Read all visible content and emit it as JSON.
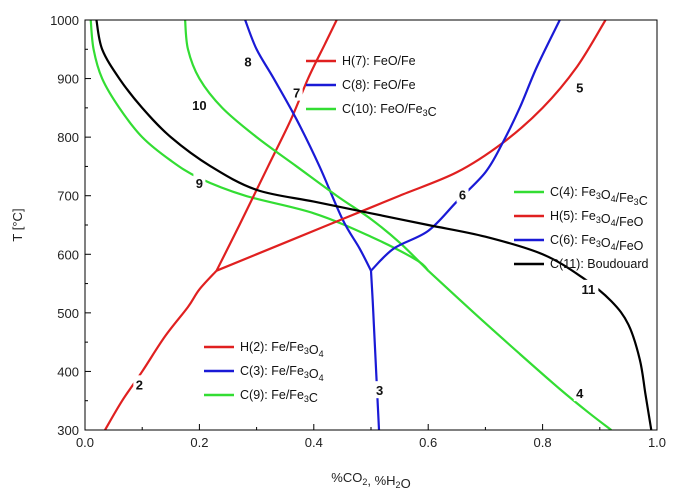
{
  "chart_data": {
    "type": "line",
    "xlabel": {
      "pre": "%CO",
      "sub1": "2",
      "mid": ", %H",
      "sub2": "2",
      "post": "O"
    },
    "ylabel": "T [°C]",
    "xlim": [
      0.0,
      1.0
    ],
    "ylim": [
      300,
      1000
    ],
    "xticks": [
      "0.0",
      "0.2",
      "0.4",
      "0.6",
      "0.8",
      "1.0"
    ],
    "yticks": [
      "300",
      "400",
      "500",
      "600",
      "700",
      "800",
      "900",
      "1000"
    ],
    "grid": false,
    "colors": {
      "red": "#e02020",
      "blue": "#1a1ad6",
      "green": "#33dd33",
      "black": "#000000"
    },
    "series": [
      {
        "name": "H(2): Fe/Fe3O4",
        "label": "2",
        "color": "red",
        "points": [
          [
            0.035,
            300
          ],
          [
            0.065,
            350
          ],
          [
            0.1,
            400
          ],
          [
            0.14,
            460
          ],
          [
            0.18,
            510
          ],
          [
            0.2,
            540
          ],
          [
            0.23,
            572
          ]
        ]
      },
      {
        "name": "C(3): Fe/Fe3O4",
        "label": "3",
        "color": "blue",
        "points": [
          [
            0.5,
            572
          ],
          [
            0.503,
            520
          ],
          [
            0.505,
            480
          ],
          [
            0.508,
            420
          ],
          [
            0.51,
            380
          ],
          [
            0.512,
            340
          ],
          [
            0.514,
            300
          ]
        ]
      },
      {
        "name": "C(9): Fe/Fe3C",
        "label": "9",
        "color": "green",
        "points": [
          [
            0.01,
            1000
          ],
          [
            0.015,
            950
          ],
          [
            0.03,
            900
          ],
          [
            0.06,
            850
          ],
          [
            0.1,
            800
          ],
          [
            0.15,
            760
          ],
          [
            0.2,
            730
          ],
          [
            0.28,
            700
          ],
          [
            0.4,
            670
          ],
          [
            0.5,
            630
          ],
          [
            0.58,
            590
          ],
          [
            0.6,
            572
          ]
        ]
      },
      {
        "name": "H(7): FeO/Fe",
        "label": "7",
        "color": "red",
        "points": [
          [
            0.23,
            572
          ],
          [
            0.27,
            650
          ],
          [
            0.32,
            750
          ],
          [
            0.36,
            830
          ],
          [
            0.39,
            900
          ],
          [
            0.42,
            960
          ],
          [
            0.44,
            1000
          ]
        ]
      },
      {
        "name": "C(8): FeO/Fe",
        "label": "8",
        "color": "blue",
        "points": [
          [
            0.28,
            1000
          ],
          [
            0.3,
            950
          ],
          [
            0.33,
            900
          ],
          [
            0.37,
            830
          ],
          [
            0.41,
            750
          ],
          [
            0.45,
            660
          ],
          [
            0.48,
            610
          ],
          [
            0.5,
            572
          ]
        ]
      },
      {
        "name": "C(10): FeO/Fe3C",
        "label": "10",
        "color": "green",
        "points": [
          [
            0.175,
            1000
          ],
          [
            0.18,
            950
          ],
          [
            0.2,
            900
          ],
          [
            0.24,
            850
          ],
          [
            0.3,
            800
          ],
          [
            0.37,
            750
          ],
          [
            0.44,
            700
          ],
          [
            0.5,
            660
          ],
          [
            0.55,
            620
          ],
          [
            0.6,
            572
          ]
        ]
      },
      {
        "name": "C(4): Fe3O4/Fe3C",
        "label": "4",
        "color": "green",
        "points": [
          [
            0.6,
            572
          ],
          [
            0.68,
            500
          ],
          [
            0.76,
            430
          ],
          [
            0.83,
            370
          ],
          [
            0.88,
            330
          ],
          [
            0.92,
            300
          ]
        ]
      },
      {
        "name": "H(5): Fe3O4/FeO",
        "label": "5",
        "color": "red",
        "points": [
          [
            0.23,
            572
          ],
          [
            0.35,
            620
          ],
          [
            0.45,
            660
          ],
          [
            0.55,
            700
          ],
          [
            0.65,
            740
          ],
          [
            0.73,
            790
          ],
          [
            0.8,
            850
          ],
          [
            0.86,
            920
          ],
          [
            0.91,
            1000
          ]
        ]
      },
      {
        "name": "C(6): Fe3O4/FeO",
        "label": "6",
        "color": "blue",
        "points": [
          [
            0.5,
            572
          ],
          [
            0.54,
            610
          ],
          [
            0.6,
            640
          ],
          [
            0.65,
            690
          ],
          [
            0.7,
            740
          ],
          [
            0.73,
            790
          ],
          [
            0.76,
            850
          ],
          [
            0.79,
            920
          ],
          [
            0.83,
            1000
          ]
        ]
      },
      {
        "name": "C(11): Boudouard",
        "label": "11",
        "color": "black",
        "points": [
          [
            0.02,
            1000
          ],
          [
            0.03,
            950
          ],
          [
            0.06,
            900
          ],
          [
            0.1,
            850
          ],
          [
            0.15,
            800
          ],
          [
            0.22,
            750
          ],
          [
            0.3,
            710
          ],
          [
            0.4,
            690
          ],
          [
            0.5,
            670
          ],
          [
            0.6,
            650
          ],
          [
            0.7,
            630
          ],
          [
            0.8,
            600
          ],
          [
            0.87,
            560
          ],
          [
            0.92,
            520
          ],
          [
            0.95,
            480
          ],
          [
            0.97,
            420
          ],
          [
            0.98,
            360
          ],
          [
            0.99,
            300
          ]
        ]
      }
    ],
    "curve_labels": [
      {
        "text": "2",
        "x": 0.095,
        "y": 378
      },
      {
        "text": "3",
        "x": 0.515,
        "y": 368
      },
      {
        "text": "4",
        "x": 0.865,
        "y": 363
      },
      {
        "text": "5",
        "x": 0.865,
        "y": 885
      },
      {
        "text": "6",
        "x": 0.66,
        "y": 702
      },
      {
        "text": "7",
        "x": 0.37,
        "y": 876
      },
      {
        "text": "8",
        "x": 0.285,
        "y": 929
      },
      {
        "text": "9",
        "x": 0.2,
        "y": 722
      },
      {
        "text": "10",
        "x": 0.2,
        "y": 855
      },
      {
        "text": "11",
        "x": 0.88,
        "y": 541
      }
    ],
    "legend_groups": [
      {
        "position": "top-center",
        "entries": [
          {
            "color": "red",
            "pre": "H(7): FeO/Fe",
            "sub": "",
            "post": ""
          },
          {
            "color": "blue",
            "pre": "C(8): FeO/Fe",
            "sub": "",
            "post": ""
          },
          {
            "color": "green",
            "pre": "C(10): FeO/Fe",
            "sub": "3",
            "post": "C"
          }
        ]
      },
      {
        "position": "right",
        "entries": [
          {
            "color": "green",
            "pre": "C(4): Fe",
            "sub": "3",
            "post": "O",
            "sub2": "4",
            "post2": "/Fe",
            "sub3": "3",
            "post3": "C"
          },
          {
            "color": "red",
            "pre": "H(5): Fe",
            "sub": "3",
            "post": "O",
            "sub2": "4",
            "post2": "/FeO"
          },
          {
            "color": "blue",
            "pre": "C(6): Fe",
            "sub": "3",
            "post": "O",
            "sub2": "4",
            "post2": "/FeO"
          },
          {
            "color": "black",
            "pre": "C(11): Boudouard",
            "sub": "",
            "post": ""
          }
        ]
      },
      {
        "position": "bottom-left",
        "entries": [
          {
            "color": "red",
            "pre": "H(2): Fe/Fe",
            "sub": "3",
            "post": "O",
            "sub2": "4",
            "post2": ""
          },
          {
            "color": "blue",
            "pre": "C(3): Fe/Fe",
            "sub": "3",
            "post": "O",
            "sub2": "4",
            "post2": ""
          },
          {
            "color": "green",
            "pre": "C(9): Fe/Fe",
            "sub": "3",
            "post": "C"
          }
        ]
      }
    ]
  }
}
